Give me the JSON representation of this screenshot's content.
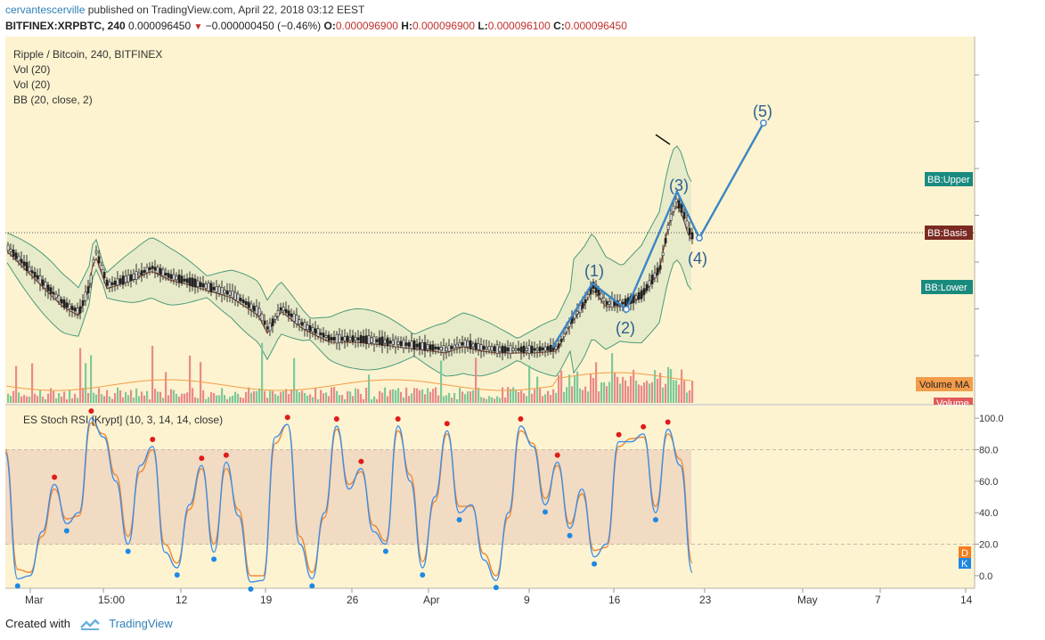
{
  "header": {
    "author": "cervantescerville",
    "published": "published on TradingView.com, April 22, 2018 03:12 EEST",
    "symbol": "BITFINEX:XRPBTC, 240",
    "last": "0.000096450",
    "change": "−0.000000450 (−0.46%)",
    "o_label": "O:",
    "o": "0.000096900",
    "h_label": "H:",
    "h": "0.000096900",
    "l_label": "L:",
    "l": "0.000096100",
    "c_label": "C:",
    "c": "0.000096450"
  },
  "legend": {
    "title": "Ripple / Bitcoin, 240, BITFINEX",
    "vol1": "Vol (20)",
    "vol2": "Vol (20)",
    "bb": "BB (20, close, 2)"
  },
  "tags": {
    "bb_upper": "BB:Upper",
    "bb_basis": "BB:Basis",
    "bb_lower": "BB:Lower",
    "volume_ma": "Volume MA",
    "volume": "Volume"
  },
  "waves": {
    "w1": "(1)",
    "w2": "(2)",
    "w3": "(3)",
    "w4": "(4)",
    "w5": "(5)"
  },
  "osc": {
    "title": "ES Stoch RSI [Krypt] (10, 3, 14, 14, close)",
    "d_badge": "D",
    "k_badge": "K"
  },
  "footer": {
    "created": "Created with",
    "brand": "TradingView"
  },
  "colors": {
    "bg": "#fdf3d0",
    "bb_band": "#e8ebc9",
    "bb_line": "#4a9a7a",
    "basis": "#8a3a2a",
    "wave": "#3c85c6",
    "band": "#f1dbc3",
    "k_line": "#3d8ee6",
    "d_line": "#f0862f",
    "vol_up": "#7ec99a",
    "vol_down": "#e98a8a",
    "dot_top": "#e01b1b",
    "dot_bottom": "#1e88e5"
  },
  "chart_data": [
    {
      "type": "candlestick",
      "title": "Ripple / Bitcoin, 240, BITFINEX",
      "x_ticks": [
        "Mar",
        "15:00",
        "12",
        "19",
        "26",
        "Apr",
        "9",
        "16",
        "23",
        "May",
        "7",
        "14"
      ],
      "x_range": [
        "2018-02-24",
        "2018-05-14"
      ],
      "indicators": [
        "Vol (20)",
        "Vol (20)",
        "BB (20, close, 2)"
      ],
      "last_close": 9.645e-05,
      "elliott_waves": [
        {
          "label": "(1)",
          "date": "2018-04-12"
        },
        {
          "label": "(2)",
          "date": "2018-04-16"
        },
        {
          "label": "(3)",
          "date": "2018-04-20"
        },
        {
          "label": "(4)",
          "date": "2018-04-21"
        },
        {
          "label": "(5)",
          "date": "2018-04-28"
        }
      ]
    },
    {
      "type": "line",
      "title": "ES Stoch RSI [Krypt] (10, 3, 14, 14, close)",
      "y_ticks": [
        "100.0",
        "80.0",
        "60.0",
        "40.0",
        "20.0",
        "0.0"
      ],
      "ylim": [
        -8,
        108
      ],
      "band": [
        20,
        80
      ],
      "x_range": [
        "2018-02-24",
        "2018-05-14"
      ],
      "series": [
        {
          "name": "K",
          "x": [
            "2018-02-24",
            "2018-02-25",
            "2018-02-26",
            "2018-02-27",
            "2018-02-28",
            "2018-03-01",
            "2018-03-02",
            "2018-03-03",
            "2018-03-04",
            "2018-03-05",
            "2018-03-06",
            "2018-03-07",
            "2018-03-08",
            "2018-03-09",
            "2018-03-10",
            "2018-03-11",
            "2018-03-12",
            "2018-03-13",
            "2018-03-14",
            "2018-03-15",
            "2018-03-16",
            "2018-03-17",
            "2018-03-18",
            "2018-03-19",
            "2018-03-20",
            "2018-03-21",
            "2018-03-22",
            "2018-03-23",
            "2018-03-24",
            "2018-03-25",
            "2018-03-26",
            "2018-03-27",
            "2018-03-28",
            "2018-03-29",
            "2018-03-30",
            "2018-03-31",
            "2018-04-01",
            "2018-04-02",
            "2018-04-03",
            "2018-04-04",
            "2018-04-05",
            "2018-04-06",
            "2018-04-07",
            "2018-04-08",
            "2018-04-09",
            "2018-04-10",
            "2018-04-11",
            "2018-04-12",
            "2018-04-13",
            "2018-04-14",
            "2018-04-15",
            "2018-04-16",
            "2018-04-17",
            "2018-04-18",
            "2018-04-19",
            "2018-04-20",
            "2018-04-21"
          ],
          "values": [
            78,
            -2,
            0,
            28,
            58,
            33,
            40,
            100,
            88,
            60,
            20,
            70,
            82,
            15,
            5,
            45,
            70,
            15,
            72,
            38,
            -4,
            -3,
            88,
            96,
            20,
            -2,
            40,
            95,
            55,
            68,
            28,
            20,
            95,
            60,
            5,
            50,
            92,
            40,
            45,
            10,
            -3,
            40,
            95,
            82,
            45,
            72,
            30,
            55,
            12,
            20,
            85,
            85,
            90,
            40,
            93,
            70,
            2
          ]
        },
        {
          "name": "D",
          "x": [
            "2018-02-24",
            "2018-02-25",
            "2018-02-26",
            "2018-02-27",
            "2018-02-28",
            "2018-03-01",
            "2018-03-02",
            "2018-03-03",
            "2018-03-04",
            "2018-03-05",
            "2018-03-06",
            "2018-03-07",
            "2018-03-08",
            "2018-03-09",
            "2018-03-10",
            "2018-03-11",
            "2018-03-12",
            "2018-03-13",
            "2018-03-14",
            "2018-03-15",
            "2018-03-16",
            "2018-03-17",
            "2018-03-18",
            "2018-03-19",
            "2018-03-20",
            "2018-03-21",
            "2018-03-22",
            "2018-03-23",
            "2018-03-24",
            "2018-03-25",
            "2018-03-26",
            "2018-03-27",
            "2018-03-28",
            "2018-03-29",
            "2018-03-30",
            "2018-03-31",
            "2018-04-01",
            "2018-04-02",
            "2018-04-03",
            "2018-04-04",
            "2018-04-05",
            "2018-04-06",
            "2018-04-07",
            "2018-04-08",
            "2018-04-09",
            "2018-04-10",
            "2018-04-11",
            "2018-04-12",
            "2018-04-13",
            "2018-04-14",
            "2018-04-15",
            "2018-04-16",
            "2018-04-17",
            "2018-04-18",
            "2018-04-19",
            "2018-04-20",
            "2018-04-21"
          ],
          "values": [
            80,
            4,
            2,
            25,
            55,
            36,
            38,
            97,
            90,
            64,
            25,
            66,
            80,
            20,
            8,
            42,
            68,
            20,
            68,
            42,
            0,
            0,
            84,
            96,
            25,
            2,
            37,
            93,
            58,
            66,
            32,
            22,
            92,
            64,
            9,
            47,
            90,
            44,
            44,
            14,
            0,
            37,
            92,
            84,
            49,
            70,
            33,
            52,
            16,
            18,
            82,
            87,
            88,
            44,
            90,
            74,
            8
          ]
        }
      ]
    }
  ]
}
